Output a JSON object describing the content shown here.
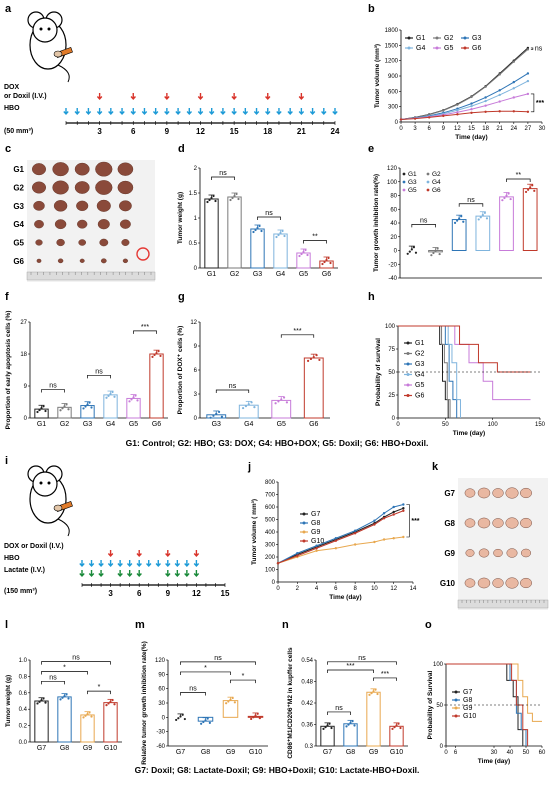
{
  "panel_labels": [
    "a",
    "b",
    "c",
    "d",
    "e",
    "f",
    "g",
    "h",
    "i",
    "j",
    "k",
    "l",
    "m",
    "n",
    "o"
  ],
  "colors": {
    "G1": "#222222",
    "G2": "#7a7a7a",
    "G3": "#2e75b6",
    "G4": "#7fb4dd",
    "G5": "#c77bd9",
    "G6": "#c0392b",
    "G7": "#222222",
    "G8": "#2e75b6",
    "G9": "#e8a84f",
    "G10": "#c0392b",
    "red_arrow": "#d9342b",
    "blue_arrow": "#1e9bd7",
    "green_arrow": "#1a8a3a"
  },
  "panel_a": {
    "dox_label": "DOX",
    "dox_label2": "or Doxil (I.V.)",
    "hbo_label": "HBO",
    "start_label": "(50 mm³)",
    "ticks": [
      "3",
      "6",
      "9",
      "12",
      "15",
      "18",
      "21",
      "24"
    ]
  },
  "panel_i": {
    "dox_label": "DOX or Doxil (I.V.)",
    "hbo_label": "HBO",
    "lactate_label": "Lactate (I.V.)",
    "start_label": "(150 mm³)",
    "ticks": [
      "3",
      "6",
      "9",
      "12",
      "15"
    ]
  },
  "panel_c": {
    "rows": [
      "G1",
      "G2",
      "G3",
      "G4",
      "G5",
      "G6"
    ]
  },
  "panel_k": {
    "rows": [
      "G7",
      "G8",
      "G9",
      "G10"
    ]
  },
  "caption_top": "G1: Control; G2: HBO; G3: DOX; G4: HBO+DOX; G5: Doxil; G6: HBO+Doxil.",
  "caption_bottom": "G7: Doxil; G8: Lactate-Doxil; G9: HBO+Doxil; G10: Lactate-HBO+Doxil.",
  "chart_data": [
    {
      "id": "b",
      "type": "line",
      "xlabel": "Time (day)",
      "ylabel": "Tumor volume (mm³)",
      "xlim": [
        0,
        30
      ],
      "ylim": [
        0,
        1800
      ],
      "xticks": [
        0,
        3,
        6,
        9,
        12,
        15,
        18,
        21,
        24,
        27,
        30
      ],
      "yticks": [
        0,
        300,
        600,
        900,
        1200,
        1500,
        1800
      ],
      "x": [
        0,
        3,
        6,
        9,
        12,
        15,
        18,
        21,
        24,
        27
      ],
      "series": [
        {
          "name": "G1",
          "values": [
            50,
            90,
            150,
            230,
            350,
            500,
            700,
            950,
            1200,
            1450
          ]
        },
        {
          "name": "G2",
          "values": [
            50,
            88,
            145,
            225,
            340,
            490,
            690,
            930,
            1180,
            1420
          ]
        },
        {
          "name": "G3",
          "values": [
            50,
            80,
            120,
            180,
            260,
            360,
            480,
            620,
            780,
            950
          ]
        },
        {
          "name": "G4",
          "values": [
            50,
            75,
            110,
            160,
            230,
            310,
            410,
            530,
            660,
            800
          ]
        },
        {
          "name": "G5",
          "values": [
            50,
            70,
            100,
            140,
            190,
            250,
            320,
            400,
            480,
            550
          ]
        },
        {
          "name": "G6",
          "values": [
            50,
            65,
            90,
            120,
            150,
            180,
            200,
            210,
            210,
            200
          ]
        }
      ],
      "annotations": [
        "ns",
        "***"
      ]
    },
    {
      "id": "d",
      "type": "bar",
      "ylabel": "Tumor weight (g)",
      "ylim": [
        0,
        2.0
      ],
      "yticks": [
        0,
        0.5,
        1.0,
        1.5,
        2.0
      ],
      "categories": [
        "G1",
        "G2",
        "G3",
        "G4",
        "G5",
        "G6"
      ],
      "values": [
        1.38,
        1.42,
        0.78,
        0.68,
        0.3,
        0.14
      ],
      "annotations": [
        "ns",
        "ns",
        "**"
      ]
    },
    {
      "id": "e",
      "type": "bar",
      "ylabel": "Tumor growth inhibition rate(%)",
      "ylim": [
        -40,
        120
      ],
      "yticks": [
        -40,
        -20,
        0,
        20,
        40,
        60,
        80,
        100,
        120
      ],
      "categories": [
        "G1",
        "G2",
        "G3",
        "G4",
        "G5",
        "G6"
      ],
      "values": [
        0,
        -2,
        45,
        50,
        78,
        90
      ],
      "legend": [
        "G1",
        "G2",
        "G3",
        "G4",
        "G5",
        "G6"
      ],
      "annotations": [
        "ns",
        "ns",
        "**"
      ]
    },
    {
      "id": "f",
      "type": "bar",
      "ylabel": "Proportion of early apoptosis cells (%)",
      "ylim": [
        0,
        27
      ],
      "yticks": [
        0,
        9,
        18,
        27
      ],
      "categories": [
        "G1",
        "G2",
        "G3",
        "G4",
        "G5",
        "G6"
      ],
      "values": [
        2.5,
        3.0,
        3.5,
        6.5,
        5.5,
        18
      ],
      "annotations": [
        "ns",
        "ns",
        "***"
      ]
    },
    {
      "id": "g",
      "type": "bar",
      "ylabel": "Proportion of DOX⁺ cells (%)",
      "ylim": [
        0,
        12
      ],
      "yticks": [
        0,
        3,
        6,
        9,
        12
      ],
      "categories": [
        "G3",
        "G4",
        "G5",
        "G6"
      ],
      "values": [
        0.4,
        1.6,
        2.2,
        7.5
      ],
      "annotations": [
        "ns",
        "***"
      ]
    },
    {
      "id": "h",
      "type": "line",
      "xlabel": "Time (day)",
      "ylabel": "Probability of survival",
      "xlim": [
        0,
        150
      ],
      "ylim": [
        0,
        100
      ],
      "xticks": [
        0,
        50,
        100,
        150
      ],
      "yticks": [
        0,
        25,
        50,
        75,
        100
      ],
      "series": [
        {
          "name": "G1",
          "x": [
            0,
            44,
            47,
            50,
            53
          ],
          "values": [
            100,
            80,
            40,
            20,
            0
          ]
        },
        {
          "name": "G2",
          "x": [
            0,
            46,
            49,
            52,
            55
          ],
          "values": [
            100,
            80,
            60,
            20,
            0
          ]
        },
        {
          "name": "G3",
          "x": [
            0,
            50,
            54,
            58,
            62
          ],
          "values": [
            100,
            80,
            40,
            20,
            0
          ]
        },
        {
          "name": "G4",
          "x": [
            0,
            53,
            57,
            62,
            66
          ],
          "values": [
            100,
            80,
            60,
            20,
            0
          ]
        },
        {
          "name": "G5",
          "x": [
            0,
            60,
            75,
            90,
            100,
            140
          ],
          "values": [
            100,
            80,
            60,
            40,
            20,
            20
          ]
        },
        {
          "name": "G6",
          "x": [
            0,
            65,
            85,
            105,
            140
          ],
          "values": [
            100,
            80,
            60,
            50,
            50
          ]
        }
      ]
    },
    {
      "id": "j",
      "type": "line",
      "xlabel": "Time (day)",
      "ylabel": "Tumor volume ( mm³)",
      "xlim": [
        0,
        14
      ],
      "ylim": [
        0,
        800
      ],
      "xticks": [
        0,
        2,
        4,
        6,
        8,
        10,
        12,
        14
      ],
      "yticks": [
        0,
        100,
        200,
        300,
        400,
        500,
        600,
        700,
        800
      ],
      "x": [
        0,
        2,
        4,
        6,
        8,
        10,
        11,
        12,
        13
      ],
      "series": [
        {
          "name": "G7",
          "values": [
            150,
            220,
            280,
            340,
            400,
            470,
            520,
            560,
            590
          ]
        },
        {
          "name": "G8",
          "values": [
            150,
            230,
            290,
            350,
            410,
            490,
            550,
            600,
            620
          ]
        },
        {
          "name": "G9",
          "values": [
            150,
            200,
            250,
            270,
            300,
            320,
            340,
            350,
            360
          ]
        },
        {
          "name": "G10",
          "values": [
            150,
            210,
            270,
            330,
            390,
            460,
            510,
            540,
            570
          ]
        }
      ],
      "annotations": [
        "***"
      ]
    },
    {
      "id": "l",
      "type": "bar",
      "ylabel": "Tumor weight (g)",
      "ylim": [
        0.0,
        1.0
      ],
      "yticks": [
        0.0,
        0.2,
        0.4,
        0.6,
        0.8,
        1.0
      ],
      "categories": [
        "G7",
        "G8",
        "G9",
        "G10"
      ],
      "values": [
        0.5,
        0.55,
        0.33,
        0.48
      ],
      "annotations": [
        "ns",
        "*",
        "ns",
        "*"
      ]
    },
    {
      "id": "m",
      "type": "bar",
      "ylabel": "Relative tumor growth inhibition rate(%)",
      "ylim": [
        -60,
        120
      ],
      "yticks": [
        -60,
        -30,
        0,
        30,
        60,
        90,
        120
      ],
      "categories": [
        "G7",
        "G8",
        "G9",
        "G10"
      ],
      "values": [
        0,
        -8,
        35,
        2
      ],
      "annotations": [
        "ns",
        "*",
        "ns",
        "*"
      ]
    },
    {
      "id": "n",
      "type": "bar",
      "ylabel": "CD86⁺M1/CD206⁺M2 in kupffer cells",
      "ylim": [
        0.3,
        0.54
      ],
      "yticks": [
        0.3,
        0.36,
        0.42,
        0.48,
        0.54
      ],
      "categories": [
        "G7",
        "G8",
        "G9",
        "G10"
      ],
      "values": [
        0.355,
        0.362,
        0.45,
        0.355
      ],
      "annotations": [
        "ns",
        "***",
        "***",
        "ns"
      ]
    },
    {
      "id": "o",
      "type": "line",
      "xlabel": "Time (day)",
      "ylabel": "Probability of Survival",
      "xlim": [
        0,
        60
      ],
      "ylim": [
        0,
        100
      ],
      "xticks": [
        0,
        6,
        30,
        40,
        50,
        60
      ],
      "yticks": [
        0,
        50,
        100
      ],
      "series": [
        {
          "name": "G7",
          "x": [
            0,
            38,
            42,
            45,
            48
          ],
          "values": [
            100,
            80,
            60,
            20,
            0
          ]
        },
        {
          "name": "G8",
          "x": [
            0,
            40,
            44,
            47,
            50
          ],
          "values": [
            100,
            80,
            40,
            20,
            0
          ]
        },
        {
          "name": "G9",
          "x": [
            0,
            45,
            48,
            51,
            54,
            60
          ],
          "values": [
            100,
            80,
            60,
            40,
            30,
            30
          ]
        },
        {
          "name": "G10",
          "x": [
            0,
            41,
            44,
            48,
            51
          ],
          "values": [
            100,
            80,
            50,
            20,
            0
          ]
        }
      ]
    }
  ]
}
